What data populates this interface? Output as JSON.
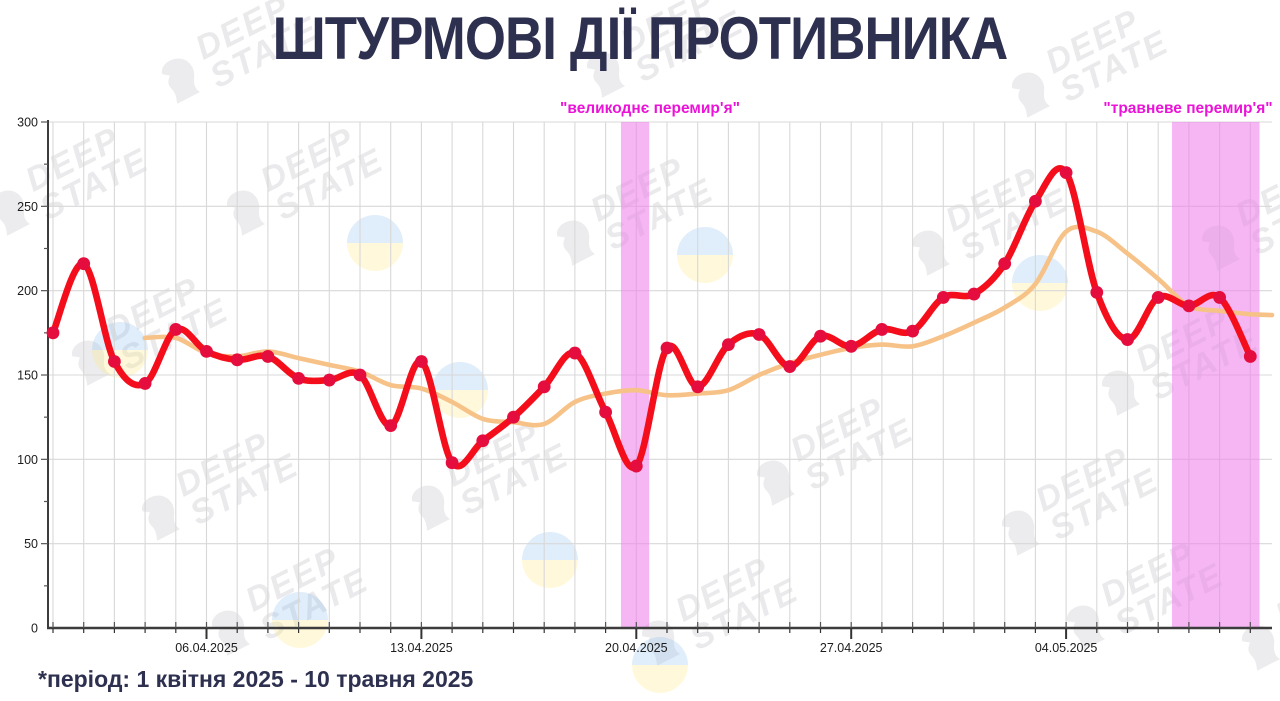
{
  "header": {
    "title": "ШТУРМОВІ ДІЇ ПРОТИВНИКА",
    "title_color": "#2e3050"
  },
  "footer": {
    "note": "*період: 1 квітня 2025 - 10 травня 2025"
  },
  "watermark": {
    "line1": "DEEP",
    "line2": "STATE"
  },
  "chart_data": {
    "type": "line",
    "title": "ШТУРМОВІ ДІЇ ПРОТИВНИКА",
    "x_unit": "day",
    "x_start_date": "01.04.2025",
    "x_end_date": "10.05.2025",
    "num_days": 40,
    "ylim": [
      0,
      300
    ],
    "y_ticks": [
      0,
      50,
      100,
      150,
      200,
      250,
      300
    ],
    "grid": true,
    "x_tick_labels": [
      {
        "day_index": 5,
        "label": "06.04.2025"
      },
      {
        "day_index": 12,
        "label": "13.04.2025"
      },
      {
        "day_index": 19,
        "label": "20.04.2025"
      },
      {
        "day_index": 26,
        "label": "27.04.2025"
      },
      {
        "day_index": 33,
        "label": "04.05.2025"
      }
    ],
    "series": [
      {
        "name": "daily-assaults",
        "color": "#f40e1c",
        "point_color": "#e50d3d",
        "start_day_index": 0,
        "values": [
          175,
          216,
          158,
          145,
          177,
          164,
          159,
          161,
          148,
          147,
          150,
          120,
          158,
          98,
          111,
          125,
          143,
          163,
          128,
          96,
          166,
          143,
          168,
          174,
          155,
          173,
          167,
          177,
          176,
          196,
          198,
          216,
          253,
          270,
          199,
          171,
          196,
          191,
          196,
          161
        ]
      },
      {
        "name": "moving-average",
        "color": "#f6c288",
        "point_color": null,
        "start_day_index": 3,
        "values": [
          172,
          172,
          163,
          161,
          164,
          160,
          156,
          152,
          144,
          142,
          134,
          124,
          122,
          121,
          134,
          139,
          141,
          138,
          139,
          141,
          150,
          157,
          162,
          166,
          168,
          167,
          173,
          181,
          190,
          204,
          235,
          235,
          222,
          207,
          191,
          188,
          186
        ]
      }
    ],
    "annotations": [
      {
        "label": "\"великоднє перемир'я\"",
        "text_color": "#ec13d8",
        "band_color": "#ee82ea",
        "from_day_index": 18.5,
        "to_day_index": 19.42
      },
      {
        "label": "\"травневе перемир'я\"",
        "text_color": "#ec13d8",
        "band_color": "#ee82ea",
        "from_day_index": 36.45,
        "to_day_index": 39.3
      }
    ],
    "colors": {
      "grid": "#d8d8d8",
      "axis": "#3c3c3c",
      "tick_label": "#1c1c1c"
    }
  }
}
